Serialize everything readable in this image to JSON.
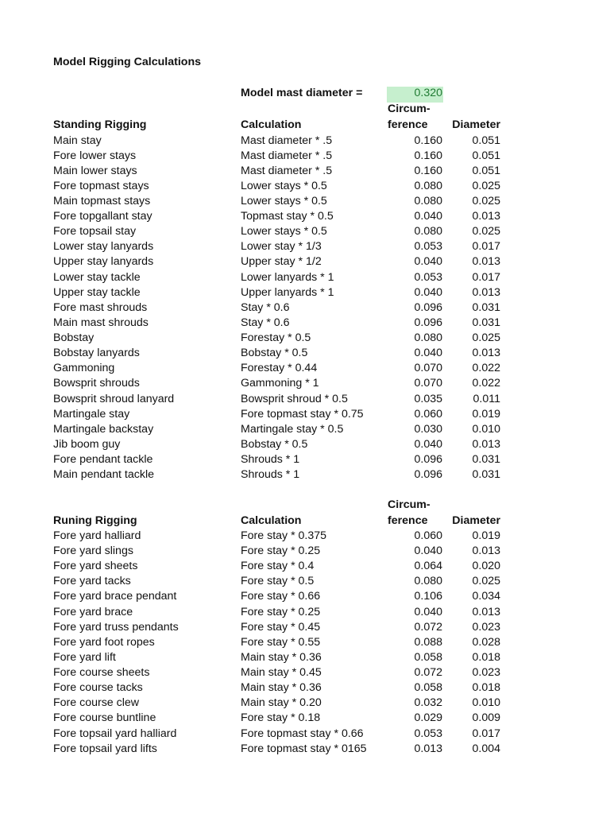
{
  "title": "Model Rigging Calculations",
  "mast": {
    "label": "Model mast diameter =",
    "value": "0.320",
    "highlight_color": "#c6efce"
  },
  "headers": {
    "circum_top": "Circum-",
    "circum_bottom": "ference",
    "diameter": "Diameter",
    "calculation": "Calculation"
  },
  "standing": {
    "heading": "Standing Rigging",
    "rows": [
      [
        "Main stay",
        "Mast diameter * .5",
        "0.160",
        "0.051"
      ],
      [
        "Fore lower stays",
        "Mast diameter * .5",
        "0.160",
        "0.051"
      ],
      [
        "Main lower stays",
        "Mast diameter * .5",
        "0.160",
        "0.051"
      ],
      [
        "Fore topmast stays",
        "Lower stays * 0.5",
        "0.080",
        "0.025"
      ],
      [
        "Main topmast stays",
        "Lower stays * 0.5",
        "0.080",
        "0.025"
      ],
      [
        "Fore topgallant stay",
        "Topmast stay * 0.5",
        "0.040",
        "0.013"
      ],
      [
        "Fore topsail stay",
        "Lower stays * 0.5",
        "0.080",
        "0.025"
      ],
      [
        "Lower stay lanyards",
        "Lower stay * 1/3",
        "0.053",
        "0.017"
      ],
      [
        "Upper stay lanyards",
        "Upper stay * 1/2",
        "0.040",
        "0.013"
      ],
      [
        "Lower stay tackle",
        "Lower lanyards * 1",
        "0.053",
        "0.017"
      ],
      [
        "Upper stay tackle",
        "Upper lanyards * 1",
        "0.040",
        "0.013"
      ],
      [
        "Fore mast shrouds",
        "Stay * 0.6",
        "0.096",
        "0.031"
      ],
      [
        "Main mast shrouds",
        "Stay * 0.6",
        "0.096",
        "0.031"
      ],
      [
        "Bobstay",
        "Forestay * 0.5",
        "0.080",
        "0.025"
      ],
      [
        "Bobstay lanyards",
        "Bobstay * 0.5",
        "0.040",
        "0.013"
      ],
      [
        "Gammoning",
        "Forestay * 0.44",
        "0.070",
        "0.022"
      ],
      [
        "Bowsprit shrouds",
        "Gammoning * 1",
        "0.070",
        "0.022"
      ],
      [
        "Bowsprit shroud lanyard",
        "Bowsprit shroud * 0.5",
        "0.035",
        "0.011"
      ],
      [
        "Martingale  stay",
        "Fore topmast stay * 0.75",
        "0.060",
        "0.019"
      ],
      [
        "Martingale backstay",
        "Martingale stay * 0.5",
        "0.030",
        "0.010"
      ],
      [
        "Jib boom guy",
        "Bobstay * 0.5",
        "0.040",
        "0.013"
      ],
      [
        "Fore pendant tackle",
        "Shrouds * 1",
        "0.096",
        "0.031"
      ],
      [
        "Main pendant tackle",
        "Shrouds * 1",
        "0.096",
        "0.031"
      ]
    ]
  },
  "running": {
    "heading": "Runing Rigging",
    "rows": [
      [
        "Fore yard halliard",
        "Fore stay * 0.375",
        "0.060",
        "0.019"
      ],
      [
        "Fore yard slings",
        "Fore stay * 0.25",
        "0.040",
        "0.013"
      ],
      [
        "Fore yard sheets",
        "Fore stay * 0.4",
        "0.064",
        "0.020"
      ],
      [
        "Fore yard tacks",
        "Fore stay * 0.5",
        "0.080",
        "0.025"
      ],
      [
        "Fore yard brace pendant",
        "Fore stay * 0.66",
        "0.106",
        "0.034"
      ],
      [
        "Fore yard brace",
        "Fore stay * 0.25",
        "0.040",
        "0.013"
      ],
      [
        "Fore yard truss pendants",
        "Fore stay * 0.45",
        "0.072",
        "0.023"
      ],
      [
        "Fore yard foot ropes",
        "Fore stay * 0.55",
        "0.088",
        "0.028"
      ],
      [
        "Fore yard lift",
        "Main stay * 0.36",
        "0.058",
        "0.018"
      ],
      [
        "Fore course sheets",
        "Main stay * 0.45",
        "0.072",
        "0.023"
      ],
      [
        "Fore course tacks",
        "Main stay * 0.36",
        "0.058",
        "0.018"
      ],
      [
        "Fore course clew",
        "Main stay * 0.20",
        "0.032",
        "0.010"
      ],
      [
        "Fore course buntline",
        "Fore stay * 0.18",
        "0.029",
        "0.009"
      ],
      [
        "Fore topsail yard halliard",
        "Fore topmast stay * 0.66",
        "0.053",
        "0.017"
      ],
      [
        "Fore topsail yard lifts",
        "Fore topmast stay * 0165",
        "0.013",
        "0.004"
      ]
    ]
  }
}
